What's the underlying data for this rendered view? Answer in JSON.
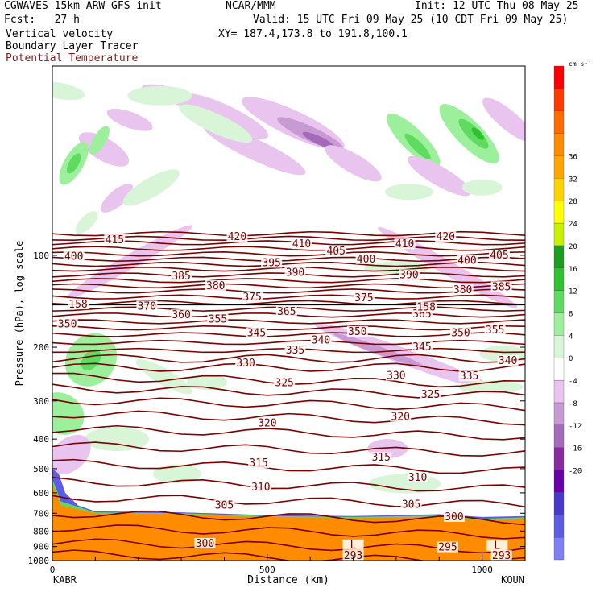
{
  "header": {
    "model": "CGWAVES 15km ARW-GFS init",
    "forecast": "Fcst:   27 h",
    "field1": "Vertical velocity",
    "field2": "Boundary Layer Tracer",
    "field3": "Potential Temperature",
    "org": "NCAR/MMM",
    "init": "Init: 12 UTC Thu 08 May 25",
    "valid": "Valid: 15 UTC Fri 09 May 25 (10 CDT Fri 09 May 25)",
    "xy": "XY= 187.4,173.8 to 191.8,100.1"
  },
  "colors": {
    "theta": "#7a0000",
    "field3_text": "#8b1a1a",
    "colorbar": [
      "#7f7ff7",
      "#5c5ce6",
      "#4a3acc",
      "#6a00aa",
      "#8a2ba2",
      "#a26ab8",
      "#c89ad4",
      "#e8c4ee",
      "#ffffff",
      "#d8f5d8",
      "#9cf09c",
      "#5fdc5f",
      "#2ec22e",
      "#1e9e1e",
      "#c8f000",
      "#ffff00",
      "#ffd200",
      "#ffa500",
      "#ff8c00",
      "#ff6a00",
      "#ff3c00",
      "#ff0000"
    ]
  },
  "chart_data": {
    "type": "contour",
    "xlabel": "Distance (km)",
    "ylabel": "Pressure (hPa), log scale",
    "xlim": [
      0,
      1100
    ],
    "ylim": [
      1000,
      24
    ],
    "x_ticks": [
      "0",
      "500",
      "1000"
    ],
    "x_tick_values": [
      0,
      500,
      1000
    ],
    "y_ticks": [
      "100",
      "200",
      "300",
      "400",
      "500",
      "600",
      "700",
      "800",
      "900",
      "1000"
    ],
    "y_tick_values": [
      100,
      200,
      300,
      400,
      500,
      600,
      700,
      800,
      900,
      1000
    ],
    "endpoints": [
      "KABR",
      "KOUN"
    ],
    "colorbar_unit": "cm s⁻¹",
    "colorbar_labels": [
      "36",
      "32",
      "28",
      "24",
      "20",
      "16",
      "12",
      "8",
      "4",
      "0",
      "-4",
      "-8",
      "-12",
      "-16",
      "-20"
    ],
    "colorbar_label_values": [
      36,
      32,
      28,
      24,
      20,
      16,
      12,
      8,
      4,
      0,
      -4,
      -8,
      -12,
      -16,
      -20
    ],
    "tropopause_pressure_hpa": 145,
    "theta_labels": [
      {
        "text": "420",
        "x": 430,
        "p": 87
      },
      {
        "text": "420",
        "x": 915,
        "p": 87
      },
      {
        "text": "415",
        "x": 145,
        "p": 89
      },
      {
        "text": "410",
        "x": 580,
        "p": 92
      },
      {
        "text": "410",
        "x": 820,
        "p": 92
      },
      {
        "text": "405",
        "x": 660,
        "p": 97
      },
      {
        "text": "405",
        "x": 1040,
        "p": 100
      },
      {
        "text": "400",
        "x": 50,
        "p": 101
      },
      {
        "text": "400",
        "x": 730,
        "p": 103
      },
      {
        "text": "400",
        "x": 965,
        "p": 104
      },
      {
        "text": "395",
        "x": 510,
        "p": 106
      },
      {
        "text": "390",
        "x": 565,
        "p": 114
      },
      {
        "text": "390",
        "x": 830,
        "p": 116
      },
      {
        "text": "385",
        "x": 300,
        "p": 117
      },
      {
        "text": "385",
        "x": 1045,
        "p": 127
      },
      {
        "text": "380",
        "x": 380,
        "p": 126
      },
      {
        "text": "380",
        "x": 955,
        "p": 130
      },
      {
        "text": "375",
        "x": 465,
        "p": 137
      },
      {
        "text": "375",
        "x": 725,
        "p": 138
      },
      {
        "text": "370",
        "x": 220,
        "p": 147
      },
      {
        "text": "365",
        "x": 545,
        "p": 153
      },
      {
        "text": "365",
        "x": 860,
        "p": 156
      },
      {
        "text": "360",
        "x": 300,
        "p": 157
      },
      {
        "text": "355",
        "x": 385,
        "p": 162
      },
      {
        "text": "355",
        "x": 1030,
        "p": 176
      },
      {
        "text": "350",
        "x": 35,
        "p": 168
      },
      {
        "text": "350",
        "x": 710,
        "p": 178
      },
      {
        "text": "350",
        "x": 950,
        "p": 180
      },
      {
        "text": "345",
        "x": 475,
        "p": 180
      },
      {
        "text": "345",
        "x": 860,
        "p": 200
      },
      {
        "text": "340",
        "x": 625,
        "p": 190
      },
      {
        "text": "340",
        "x": 1060,
        "p": 222
      },
      {
        "text": "335",
        "x": 565,
        "p": 205
      },
      {
        "text": "335",
        "x": 970,
        "p": 249
      },
      {
        "text": "330",
        "x": 450,
        "p": 226
      },
      {
        "text": "330",
        "x": 800,
        "p": 248
      },
      {
        "text": "325",
        "x": 540,
        "p": 262
      },
      {
        "text": "325",
        "x": 880,
        "p": 286
      },
      {
        "text": "320",
        "x": 500,
        "p": 355
      },
      {
        "text": "320",
        "x": 810,
        "p": 338
      },
      {
        "text": "315",
        "x": 480,
        "p": 480
      },
      {
        "text": "315",
        "x": 765,
        "p": 460
      },
      {
        "text": "310",
        "x": 485,
        "p": 575
      },
      {
        "text": "310",
        "x": 850,
        "p": 535
      },
      {
        "text": "305",
        "x": 400,
        "p": 660
      },
      {
        "text": "305",
        "x": 835,
        "p": 655
      },
      {
        "text": "300",
        "x": 355,
        "p": 880
      },
      {
        "text": "300",
        "x": 935,
        "p": 720
      },
      {
        "text": "295",
        "x": 920,
        "p": 905
      },
      {
        "text": "293",
        "x": 700,
        "p": 965
      },
      {
        "text": "293",
        "x": 1045,
        "p": 965
      },
      {
        "text": "L",
        "x": 700,
        "p": 890
      },
      {
        "text": "L",
        "x": 1035,
        "p": 895
      },
      {
        "text": "158",
        "x": 60,
        "p": 145
      },
      {
        "text": "158",
        "x": 870,
        "p": 148
      }
    ]
  }
}
